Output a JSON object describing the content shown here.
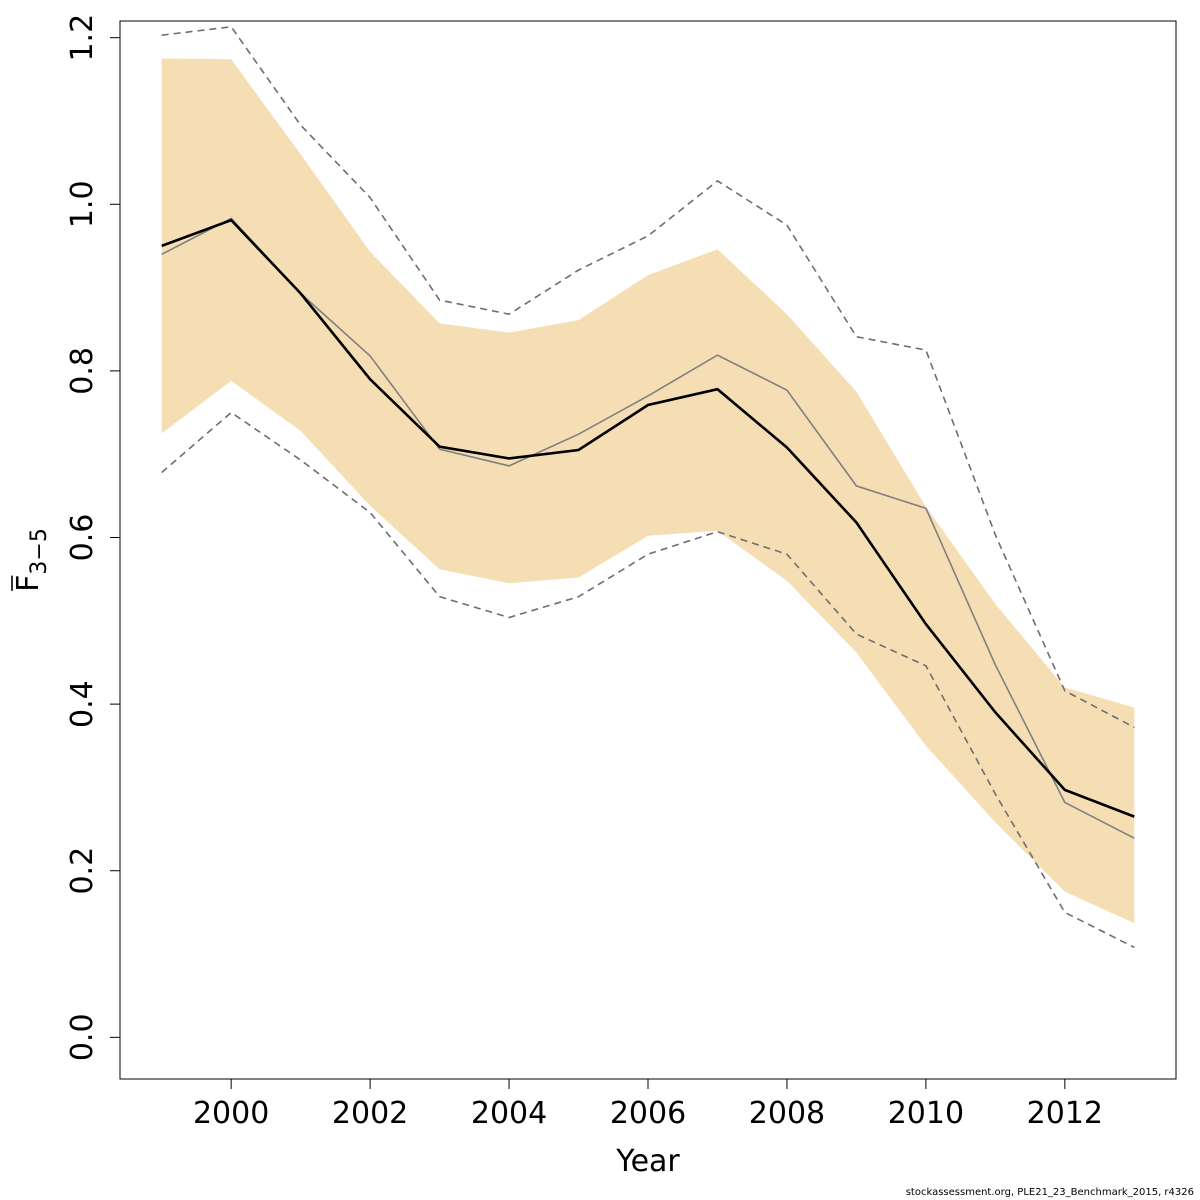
{
  "chart_data": {
    "type": "line",
    "xlabel": "Year",
    "ylabel_main": "F",
    "ylabel_sub": "3−5",
    "xlim": [
      1998.4,
      2013.6
    ],
    "ylim": [
      -0.05,
      1.22
    ],
    "x_ticks": [
      2000,
      2002,
      2004,
      2006,
      2008,
      2010,
      2012
    ],
    "y_ticks": [
      "0.0",
      "0.2",
      "0.4",
      "0.6",
      "0.8",
      "1.0",
      "1.2"
    ],
    "x": [
      1999,
      2000,
      2001,
      2002,
      2003,
      2004,
      2005,
      2006,
      2007,
      2008,
      2009,
      2010,
      2011,
      2012,
      2013
    ],
    "band": {
      "color": "#f5deb3",
      "lower": [
        0.725,
        0.788,
        0.728,
        0.638,
        0.562,
        0.545,
        0.552,
        0.602,
        0.608,
        0.548,
        0.462,
        0.35,
        0.258,
        0.175,
        0.137
      ],
      "upper": [
        1.175,
        1.174,
        1.06,
        0.943,
        0.857,
        0.846,
        0.861,
        0.915,
        0.946,
        0.868,
        0.775,
        0.637,
        0.52,
        0.42,
        0.396
      ]
    },
    "series": [
      {
        "style": "dashed",
        "color": "#6e6e6e",
        "values": [
          1.203,
          1.213,
          1.095,
          1.008,
          0.885,
          0.868,
          0.921,
          0.962,
          1.028,
          0.975,
          0.841,
          0.825,
          0.603,
          0.416,
          0.372
        ]
      },
      {
        "style": "dashed",
        "color": "#6e6e6e",
        "values": [
          0.678,
          0.75,
          0.693,
          0.63,
          0.529,
          0.504,
          0.529,
          0.58,
          0.607,
          0.58,
          0.484,
          0.446,
          0.292,
          0.15,
          0.108
        ]
      },
      {
        "style": "solid",
        "color": "#808080",
        "values": [
          0.94,
          0.983,
          0.893,
          0.818,
          0.706,
          0.686,
          0.724,
          0.77,
          0.819,
          0.777,
          0.662,
          0.635,
          0.447,
          0.282,
          0.239
        ]
      },
      {
        "style": "solid-bold",
        "color": "#000000",
        "values": [
          0.95,
          0.981,
          0.893,
          0.79,
          0.709,
          0.695,
          0.705,
          0.759,
          0.778,
          0.708,
          0.618,
          0.496,
          0.39,
          0.297,
          0.265
        ]
      }
    ]
  },
  "footer_text": "stockassessment.org, PLE21_23_Benchmark_2015, r4326"
}
